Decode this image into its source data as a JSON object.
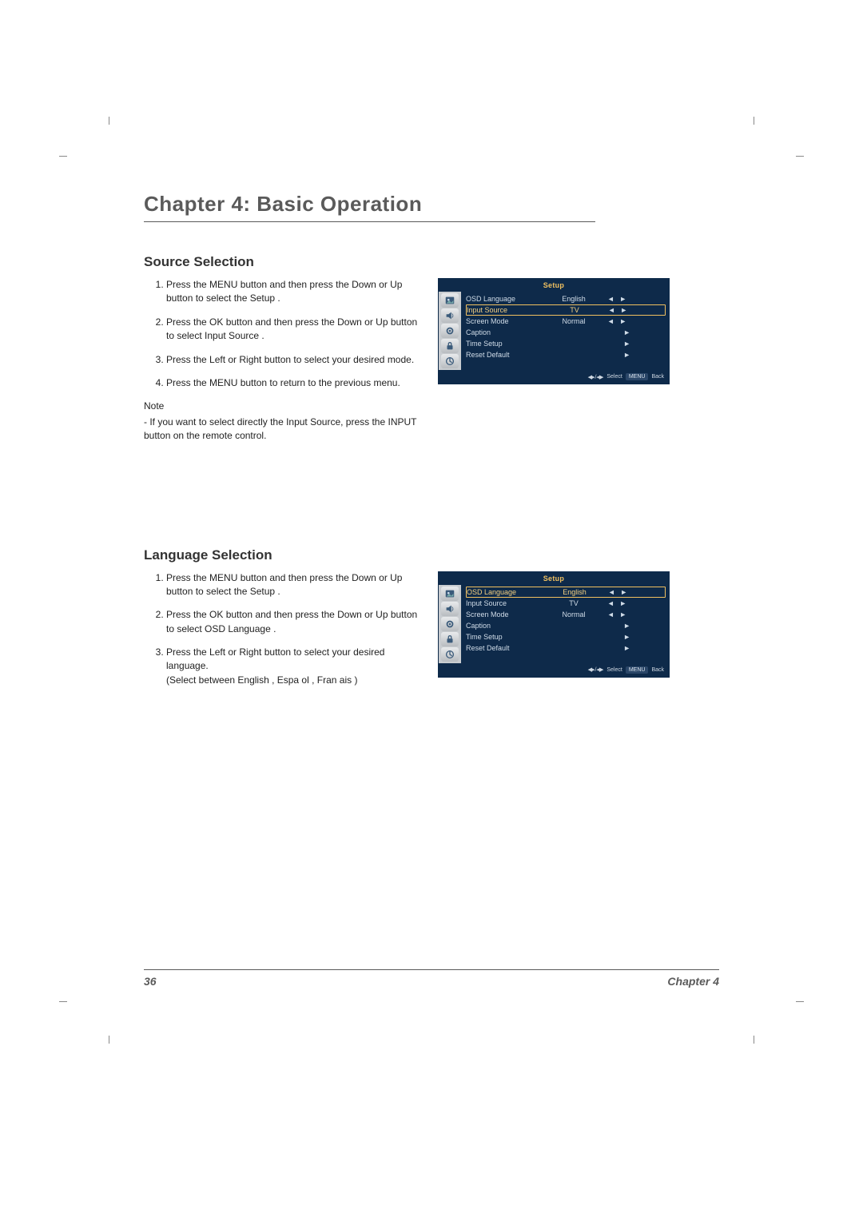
{
  "chapter_title": "Chapter 4: Basic Operation",
  "footer": {
    "page_number": "36",
    "chapter_label": "Chapter 4"
  },
  "source_selection": {
    "heading": "Source Selection",
    "steps": [
      "Press the MENU  button and then press the    Down   or  Up  button to select the   Setup  .",
      "Press the OK  button and then press the    Down   or  Up  button to select   Input Source   .",
      "Press the Left   or  Right   button to select your desired mode.",
      "Press the MENU  button to return to the previous menu."
    ],
    "note_label": "Note",
    "note_text": "-   If you want to select directly the Input Source, press the     INPUT button on the remote control."
  },
  "language_selection": {
    "heading": "Language Selection",
    "steps": [
      "Press the MENU  button and then press the    Down   or  Up  button to select the    Setup  .",
      "Press the OK  button and then press the    Down   or Up  button to select   OSD Language   .",
      "Press the Left   or  Right   button to select your desired language.\n(Select between  English  , Espa ol   , Fran ais   )"
    ]
  },
  "osd_common": {
    "title": "Setup",
    "footer_select": "Select",
    "footer_menu": "MENU",
    "footer_back": "Back",
    "arrow_icon": "◄►",
    "rows": [
      {
        "label": "OSD Language",
        "value": "English",
        "arrows": "lr"
      },
      {
        "label": "Input Source",
        "value": "TV",
        "arrows": "lr"
      },
      {
        "label": "Screen Mode",
        "value": "Normal",
        "arrows": "lr"
      },
      {
        "label": "Caption",
        "value": "",
        "arrows": "r"
      },
      {
        "label": "Time Setup",
        "value": "",
        "arrows": "r"
      },
      {
        "label": "Reset Default",
        "value": "",
        "arrows": "r"
      }
    ]
  },
  "osd1_highlight_index": 1,
  "osd2_highlight_index": 0,
  "colors": {
    "heading_gray": "#5a5a5a",
    "body_text": "#222222",
    "osd_bg": "#0e2a4a",
    "osd_accent": "#f0c060",
    "osd_text": "#d0dce8",
    "osd_icon_panel": "#c8ccd0"
  }
}
